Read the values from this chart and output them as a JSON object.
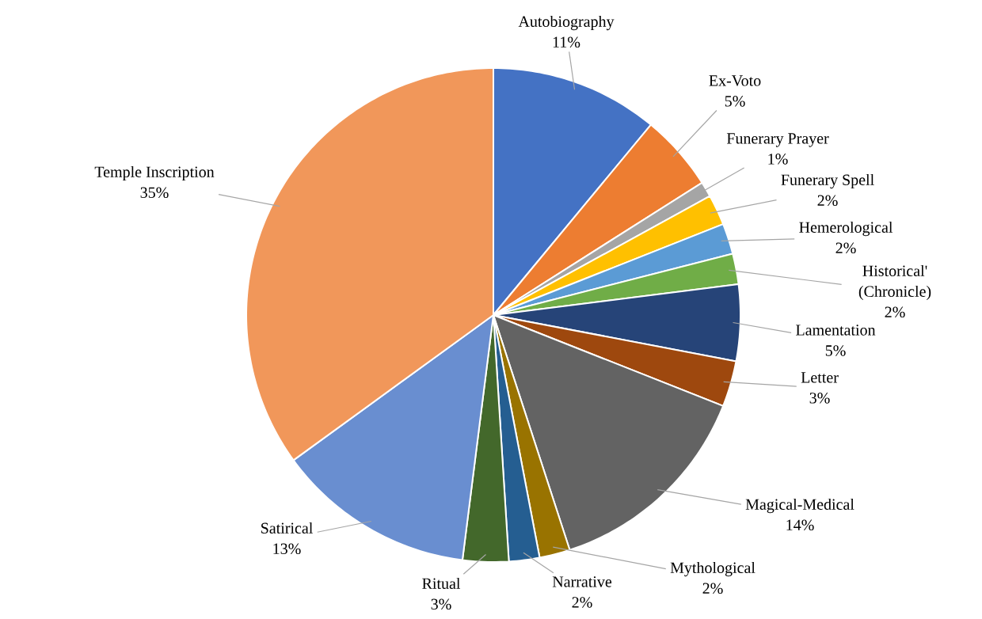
{
  "chart_data": {
    "type": "pie",
    "categories": [
      "Autobiography",
      "Ex-Voto",
      "Funerary Prayer",
      "Funerary Spell",
      "Hemerological",
      "Historical' (Chronicle)",
      "Lamentation",
      "Letter",
      "Magical-Medical",
      "Mythological",
      "Narrative",
      "Ritual",
      "Satirical",
      "Temple Inscription"
    ],
    "values": [
      11,
      5,
      1,
      2,
      2,
      2,
      5,
      3,
      14,
      2,
      2,
      3,
      13,
      35
    ],
    "value_labels": [
      "11%",
      "5%",
      "1%",
      "2%",
      "2%",
      "2%",
      "5%",
      "3%",
      "14%",
      "2%",
      "2%",
      "3%",
      "13%",
      "35%"
    ],
    "colors": [
      "#4472c4",
      "#ed7d31",
      "#a5a5a5",
      "#ffc000",
      "#5b9bd5",
      "#70ad47",
      "#264478",
      "#9e480e",
      "#636363",
      "#997300",
      "#255e91",
      "#43682b",
      "#698ed0",
      "#f1975a"
    ]
  }
}
